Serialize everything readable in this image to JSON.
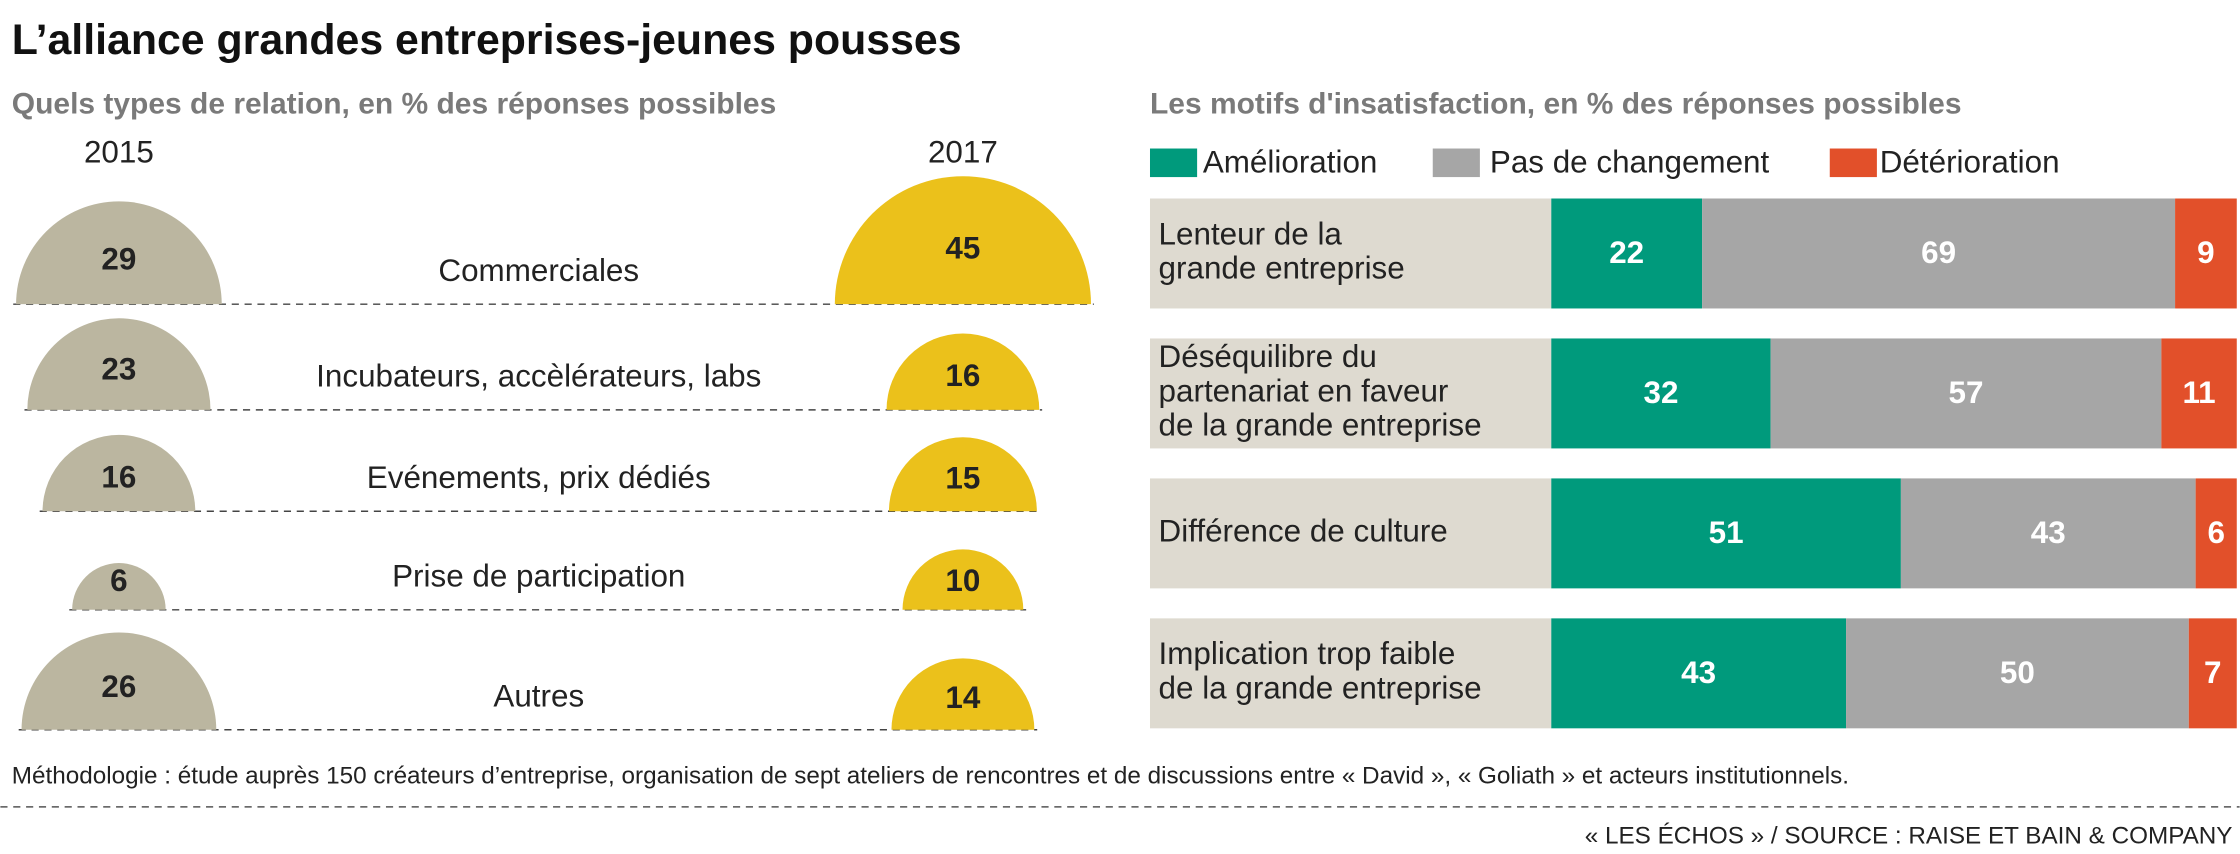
{
  "title": "L’alliance grandes entreprises-jeunes pousses",
  "note": "Méthodologie : étude auprès 150 créateurs d’entreprise, organisation de sept ateliers de rencontres et de discussions entre « David », « Goliath » et acteurs institutionnels.",
  "source": "« LES ÉCHOS » / SOURCE : RAISE ET BAIN & COMPANY",
  "chart_data": [
    {
      "type": "semicircle",
      "title": "Quels types de relation, en % des réponses possibles",
      "categories": [
        "Commerciales",
        "Incubateurs, accèlérateurs, labs",
        "Evénements, prix dédiés",
        "Prise de participation",
        "Autres"
      ],
      "series": [
        {
          "name": "2015",
          "color": "#bbb6a0",
          "values": [
            29,
            23,
            16,
            6,
            26
          ]
        },
        {
          "name": "2017",
          "color": "#ebc11b",
          "values": [
            45,
            16,
            15,
            10,
            14
          ]
        }
      ]
    },
    {
      "type": "bar",
      "orientation": "horizontal",
      "stacked": true,
      "title": "Les motifs d'insatisfaction, en % des réponses possibles",
      "categories": [
        "Lenteur de la\ngrande entreprise",
        "Déséquilibre du\npartenariat en faveur\nde la grande entreprise",
        "Différence de culture",
        "Implication trop faible\nde la grande entreprise"
      ],
      "xlim": [
        0,
        100
      ],
      "series": [
        {
          "name": "Amélioration",
          "color": "#009a7c",
          "values": [
            22,
            32,
            51,
            43
          ]
        },
        {
          "name": "Pas de changement",
          "color": "#a6a6a6",
          "values": [
            69,
            57,
            43,
            50
          ]
        },
        {
          "name": "Détérioration",
          "color": "#e2502a",
          "values": [
            9,
            11,
            6,
            7
          ]
        }
      ]
    }
  ]
}
